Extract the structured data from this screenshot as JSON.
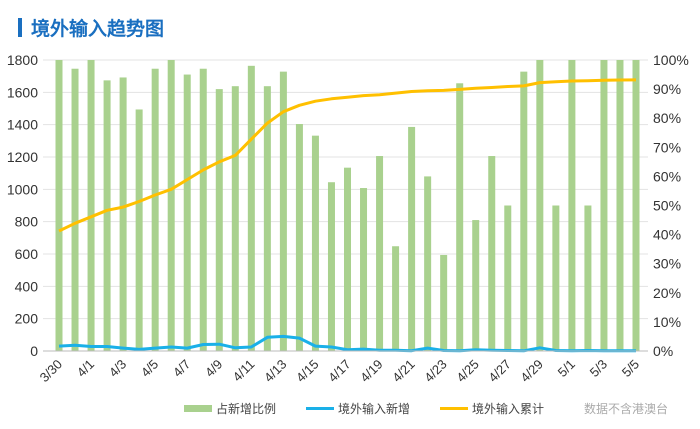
{
  "chart_data": {
    "type": "bar+line",
    "title": "境外输入趋势图",
    "note": "数据不含港澳台",
    "categories": [
      "3/30",
      "3/31",
      "4/1",
      "4/2",
      "4/3",
      "4/4",
      "4/5",
      "4/6",
      "4/7",
      "4/8",
      "4/9",
      "4/10",
      "4/11",
      "4/12",
      "4/13",
      "4/14",
      "4/15",
      "4/16",
      "4/17",
      "4/18",
      "4/19",
      "4/20",
      "4/21",
      "4/22",
      "4/23",
      "4/24",
      "4/25",
      "4/26",
      "4/27",
      "4/28",
      "4/29",
      "4/30",
      "5/1",
      "5/2",
      "5/3",
      "5/4",
      "5/5"
    ],
    "x_tick_labels": [
      "3/30",
      "4/1",
      "4/3",
      "4/5",
      "4/7",
      "4/9",
      "4/11",
      "4/13",
      "4/15",
      "4/17",
      "4/19",
      "4/21",
      "4/23",
      "4/25",
      "4/27",
      "4/29",
      "5/1",
      "5/3",
      "5/5"
    ],
    "left_axis": {
      "ylim": [
        0,
        1800
      ],
      "ticks": [
        0,
        200,
        400,
        600,
        800,
        1000,
        1200,
        1400,
        1600,
        1800
      ]
    },
    "right_axis": {
      "ylim": [
        0,
        100
      ],
      "unit": "%",
      "ticks": [
        "0%",
        "10%",
        "20%",
        "30%",
        "40%",
        "50%",
        "60%",
        "70%",
        "80%",
        "90%",
        "100%"
      ]
    },
    "grid": true,
    "legend_position": "bottom",
    "series": [
      {
        "name": "占新增比例",
        "type": "bar",
        "axis": "right",
        "color": "#a9d18e",
        "values": [
          100,
          97,
          100,
          93,
          94,
          83,
          97,
          100,
          95,
          97,
          90,
          91,
          98,
          91,
          96,
          78,
          74,
          58,
          63,
          56,
          67,
          36,
          77,
          60,
          33,
          92,
          45,
          67,
          50,
          96,
          100,
          50,
          100,
          50,
          100,
          100,
          100
        ]
      },
      {
        "name": "境外输入新增",
        "type": "line",
        "axis": "left",
        "color": "#1ab0e8",
        "values": [
          30,
          35,
          28,
          28,
          18,
          10,
          18,
          25,
          18,
          40,
          42,
          20,
          25,
          85,
          90,
          80,
          30,
          25,
          8,
          12,
          5,
          5,
          2,
          18,
          3,
          2,
          8,
          5,
          3,
          1,
          20,
          3,
          2,
          3,
          1,
          2,
          1
        ]
      },
      {
        "name": "境外输入累计",
        "type": "line",
        "axis": "left",
        "color": "#ffc000",
        "values": [
          742,
          790,
          830,
          870,
          890,
          925,
          965,
          1000,
          1060,
          1120,
          1170,
          1210,
          1310,
          1410,
          1480,
          1520,
          1545,
          1560,
          1570,
          1580,
          1585,
          1595,
          1605,
          1610,
          1612,
          1618,
          1625,
          1630,
          1636,
          1640,
          1660,
          1666,
          1670,
          1672,
          1675,
          1676,
          1677
        ]
      }
    ]
  }
}
